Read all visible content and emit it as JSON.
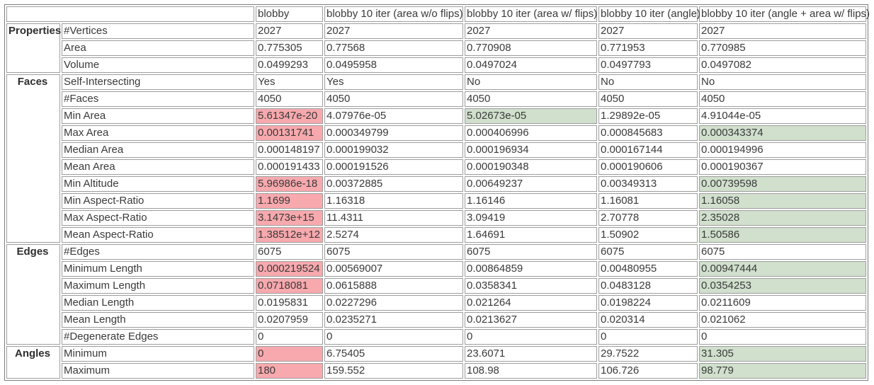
{
  "table": {
    "highlight_colors": {
      "bad": "#f7a9ae",
      "good": "#d0e0cd"
    },
    "columns": [
      "blobby",
      "blobby 10 iter (area w/o flips)",
      "blobby 10 iter (area w/ flips)",
      "blobby 10 iter (angle)",
      "blobby 10 iter (angle + area w/ flips)"
    ],
    "sections": [
      {
        "label": "Properties",
        "rows": [
          {
            "name": "#Vertices",
            "cells": [
              {
                "value": "2027"
              },
              {
                "value": "2027"
              },
              {
                "value": "2027"
              },
              {
                "value": "2027"
              },
              {
                "value": "2027"
              }
            ]
          },
          {
            "name": "Area",
            "cells": [
              {
                "value": "0.775305"
              },
              {
                "value": "0.77568"
              },
              {
                "value": "0.770908"
              },
              {
                "value": "0.771953"
              },
              {
                "value": "0.770985"
              }
            ]
          },
          {
            "name": "Volume",
            "cells": [
              {
                "value": "0.0499293"
              },
              {
                "value": "0.0495958"
              },
              {
                "value": "0.0497024"
              },
              {
                "value": "0.0497793"
              },
              {
                "value": "0.0497082"
              }
            ]
          }
        ]
      },
      {
        "label": "Faces",
        "rows": [
          {
            "name": "Self-Intersecting",
            "cells": [
              {
                "value": "Yes"
              },
              {
                "value": "Yes"
              },
              {
                "value": "No"
              },
              {
                "value": "No"
              },
              {
                "value": "No"
              }
            ]
          },
          {
            "name": "#Faces",
            "cells": [
              {
                "value": "4050"
              },
              {
                "value": "4050"
              },
              {
                "value": "4050"
              },
              {
                "value": "4050"
              },
              {
                "value": "4050"
              }
            ]
          },
          {
            "name": "Min Area",
            "cells": [
              {
                "value": "5.61347e-20",
                "state": "bad"
              },
              {
                "value": "4.07976e-05"
              },
              {
                "value": "5.02673e-05",
                "state": "good"
              },
              {
                "value": "1.29892e-05"
              },
              {
                "value": "4.91044e-05"
              }
            ]
          },
          {
            "name": "Max Area",
            "cells": [
              {
                "value": "0.00131741",
                "state": "bad"
              },
              {
                "value": "0.000349799"
              },
              {
                "value": "0.000406996"
              },
              {
                "value": "0.000845683"
              },
              {
                "value": "0.000343374",
                "state": "good"
              }
            ]
          },
          {
            "name": "Median Area",
            "cells": [
              {
                "value": "0.000148197"
              },
              {
                "value": "0.000199032"
              },
              {
                "value": "0.000196934"
              },
              {
                "value": "0.000167144"
              },
              {
                "value": "0.000194996"
              }
            ]
          },
          {
            "name": "Mean Area",
            "cells": [
              {
                "value": "0.000191433"
              },
              {
                "value": "0.000191526"
              },
              {
                "value": "0.000190348"
              },
              {
                "value": "0.000190606"
              },
              {
                "value": "0.000190367"
              }
            ]
          },
          {
            "name": "Min Altitude",
            "cells": [
              {
                "value": "5.96986e-18",
                "state": "bad"
              },
              {
                "value": "0.00372885"
              },
              {
                "value": "0.00649237"
              },
              {
                "value": "0.00349313"
              },
              {
                "value": "0.00739598",
                "state": "good"
              }
            ]
          },
          {
            "name": "Min Aspect-Ratio",
            "cells": [
              {
                "value": "1.1699",
                "state": "bad"
              },
              {
                "value": "1.16318"
              },
              {
                "value": "1.16146"
              },
              {
                "value": "1.16081"
              },
              {
                "value": "1.16058",
                "state": "good"
              }
            ]
          },
          {
            "name": "Max Aspect-Ratio",
            "cells": [
              {
                "value": "3.1473e+15",
                "state": "bad"
              },
              {
                "value": "11.4311"
              },
              {
                "value": "3.09419"
              },
              {
                "value": "2.70778"
              },
              {
                "value": "2.35028",
                "state": "good"
              }
            ]
          },
          {
            "name": "Mean Aspect-Ratio",
            "cells": [
              {
                "value": "1.38512e+12",
                "state": "bad"
              },
              {
                "value": "2.5274"
              },
              {
                "value": "1.64691"
              },
              {
                "value": "1.50902"
              },
              {
                "value": "1.50586",
                "state": "good"
              }
            ]
          }
        ]
      },
      {
        "label": "Edges",
        "rows": [
          {
            "name": "#Edges",
            "cells": [
              {
                "value": "6075"
              },
              {
                "value": "6075"
              },
              {
                "value": "6075"
              },
              {
                "value": "6075"
              },
              {
                "value": "6075"
              }
            ]
          },
          {
            "name": "Minimum Length",
            "cells": [
              {
                "value": "0.000219524",
                "state": "bad"
              },
              {
                "value": "0.00569007"
              },
              {
                "value": "0.00864859"
              },
              {
                "value": "0.00480955"
              },
              {
                "value": "0.00947444",
                "state": "good"
              }
            ]
          },
          {
            "name": "Maximum Length",
            "cells": [
              {
                "value": "0.0718081",
                "state": "bad"
              },
              {
                "value": "0.0615888"
              },
              {
                "value": "0.0358341"
              },
              {
                "value": "0.0483128"
              },
              {
                "value": "0.0354253",
                "state": "good"
              }
            ]
          },
          {
            "name": "Median Length",
            "cells": [
              {
                "value": "0.0195831"
              },
              {
                "value": "0.0227296"
              },
              {
                "value": "0.021264"
              },
              {
                "value": "0.0198224"
              },
              {
                "value": "0.0211609"
              }
            ]
          },
          {
            "name": "Mean Length",
            "cells": [
              {
                "value": "0.0207959"
              },
              {
                "value": "0.0235271"
              },
              {
                "value": "0.0213627"
              },
              {
                "value": "0.020314"
              },
              {
                "value": "0.021062"
              }
            ]
          },
          {
            "name": "#Degenerate Edges",
            "cells": [
              {
                "value": "0"
              },
              {
                "value": "0"
              },
              {
                "value": "0"
              },
              {
                "value": "0"
              },
              {
                "value": "0"
              }
            ]
          }
        ]
      },
      {
        "label": "Angles",
        "rows": [
          {
            "name": "Minimum",
            "cells": [
              {
                "value": "0",
                "state": "bad"
              },
              {
                "value": "6.75405"
              },
              {
                "value": "23.6071"
              },
              {
                "value": "29.7522"
              },
              {
                "value": "31.305",
                "state": "good"
              }
            ]
          },
          {
            "name": "Maximum",
            "cells": [
              {
                "value": "180",
                "state": "bad"
              },
              {
                "value": "159.552"
              },
              {
                "value": "108.98"
              },
              {
                "value": "106.726"
              },
              {
                "value": "98.779",
                "state": "good"
              }
            ]
          }
        ]
      }
    ]
  }
}
